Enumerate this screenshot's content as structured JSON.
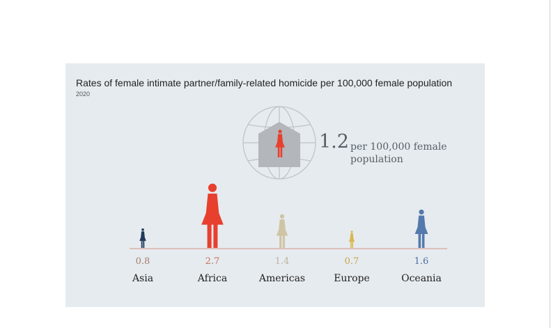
{
  "chart_data": {
    "type": "pictogram",
    "title": "Rates of female intimate partner/family-related homicide per 100,000 female population",
    "subtitle": "2020",
    "global": {
      "value": "1.2",
      "unit": "per 100,000 female population"
    },
    "categories": [
      "Asia",
      "Africa",
      "Americas",
      "Europe",
      "Oceania"
    ],
    "values": [
      0.8,
      2.7,
      1.4,
      0.7,
      1.6
    ],
    "value_labels": [
      "0.8",
      "2.7",
      "1.4",
      "0.7",
      "1.6"
    ],
    "colors": [
      "#1f3a5a",
      "#e8402e",
      "#cfc4a3",
      "#d9b84f",
      "#5479ac"
    ],
    "label_colors": [
      "#a87c70",
      "#c9705e",
      "#bdb4a0",
      "#c6a54a",
      "#4f6f9e"
    ]
  },
  "colors": {
    "panel": "#e6ebef",
    "baseline": "#d9a49a",
    "globe": "#bfc4c9",
    "house": "#b3b6ba",
    "global_figure": "#e8402e"
  },
  "icons": [
    "globe-icon",
    "house-icon",
    "female-figure-icon"
  ]
}
